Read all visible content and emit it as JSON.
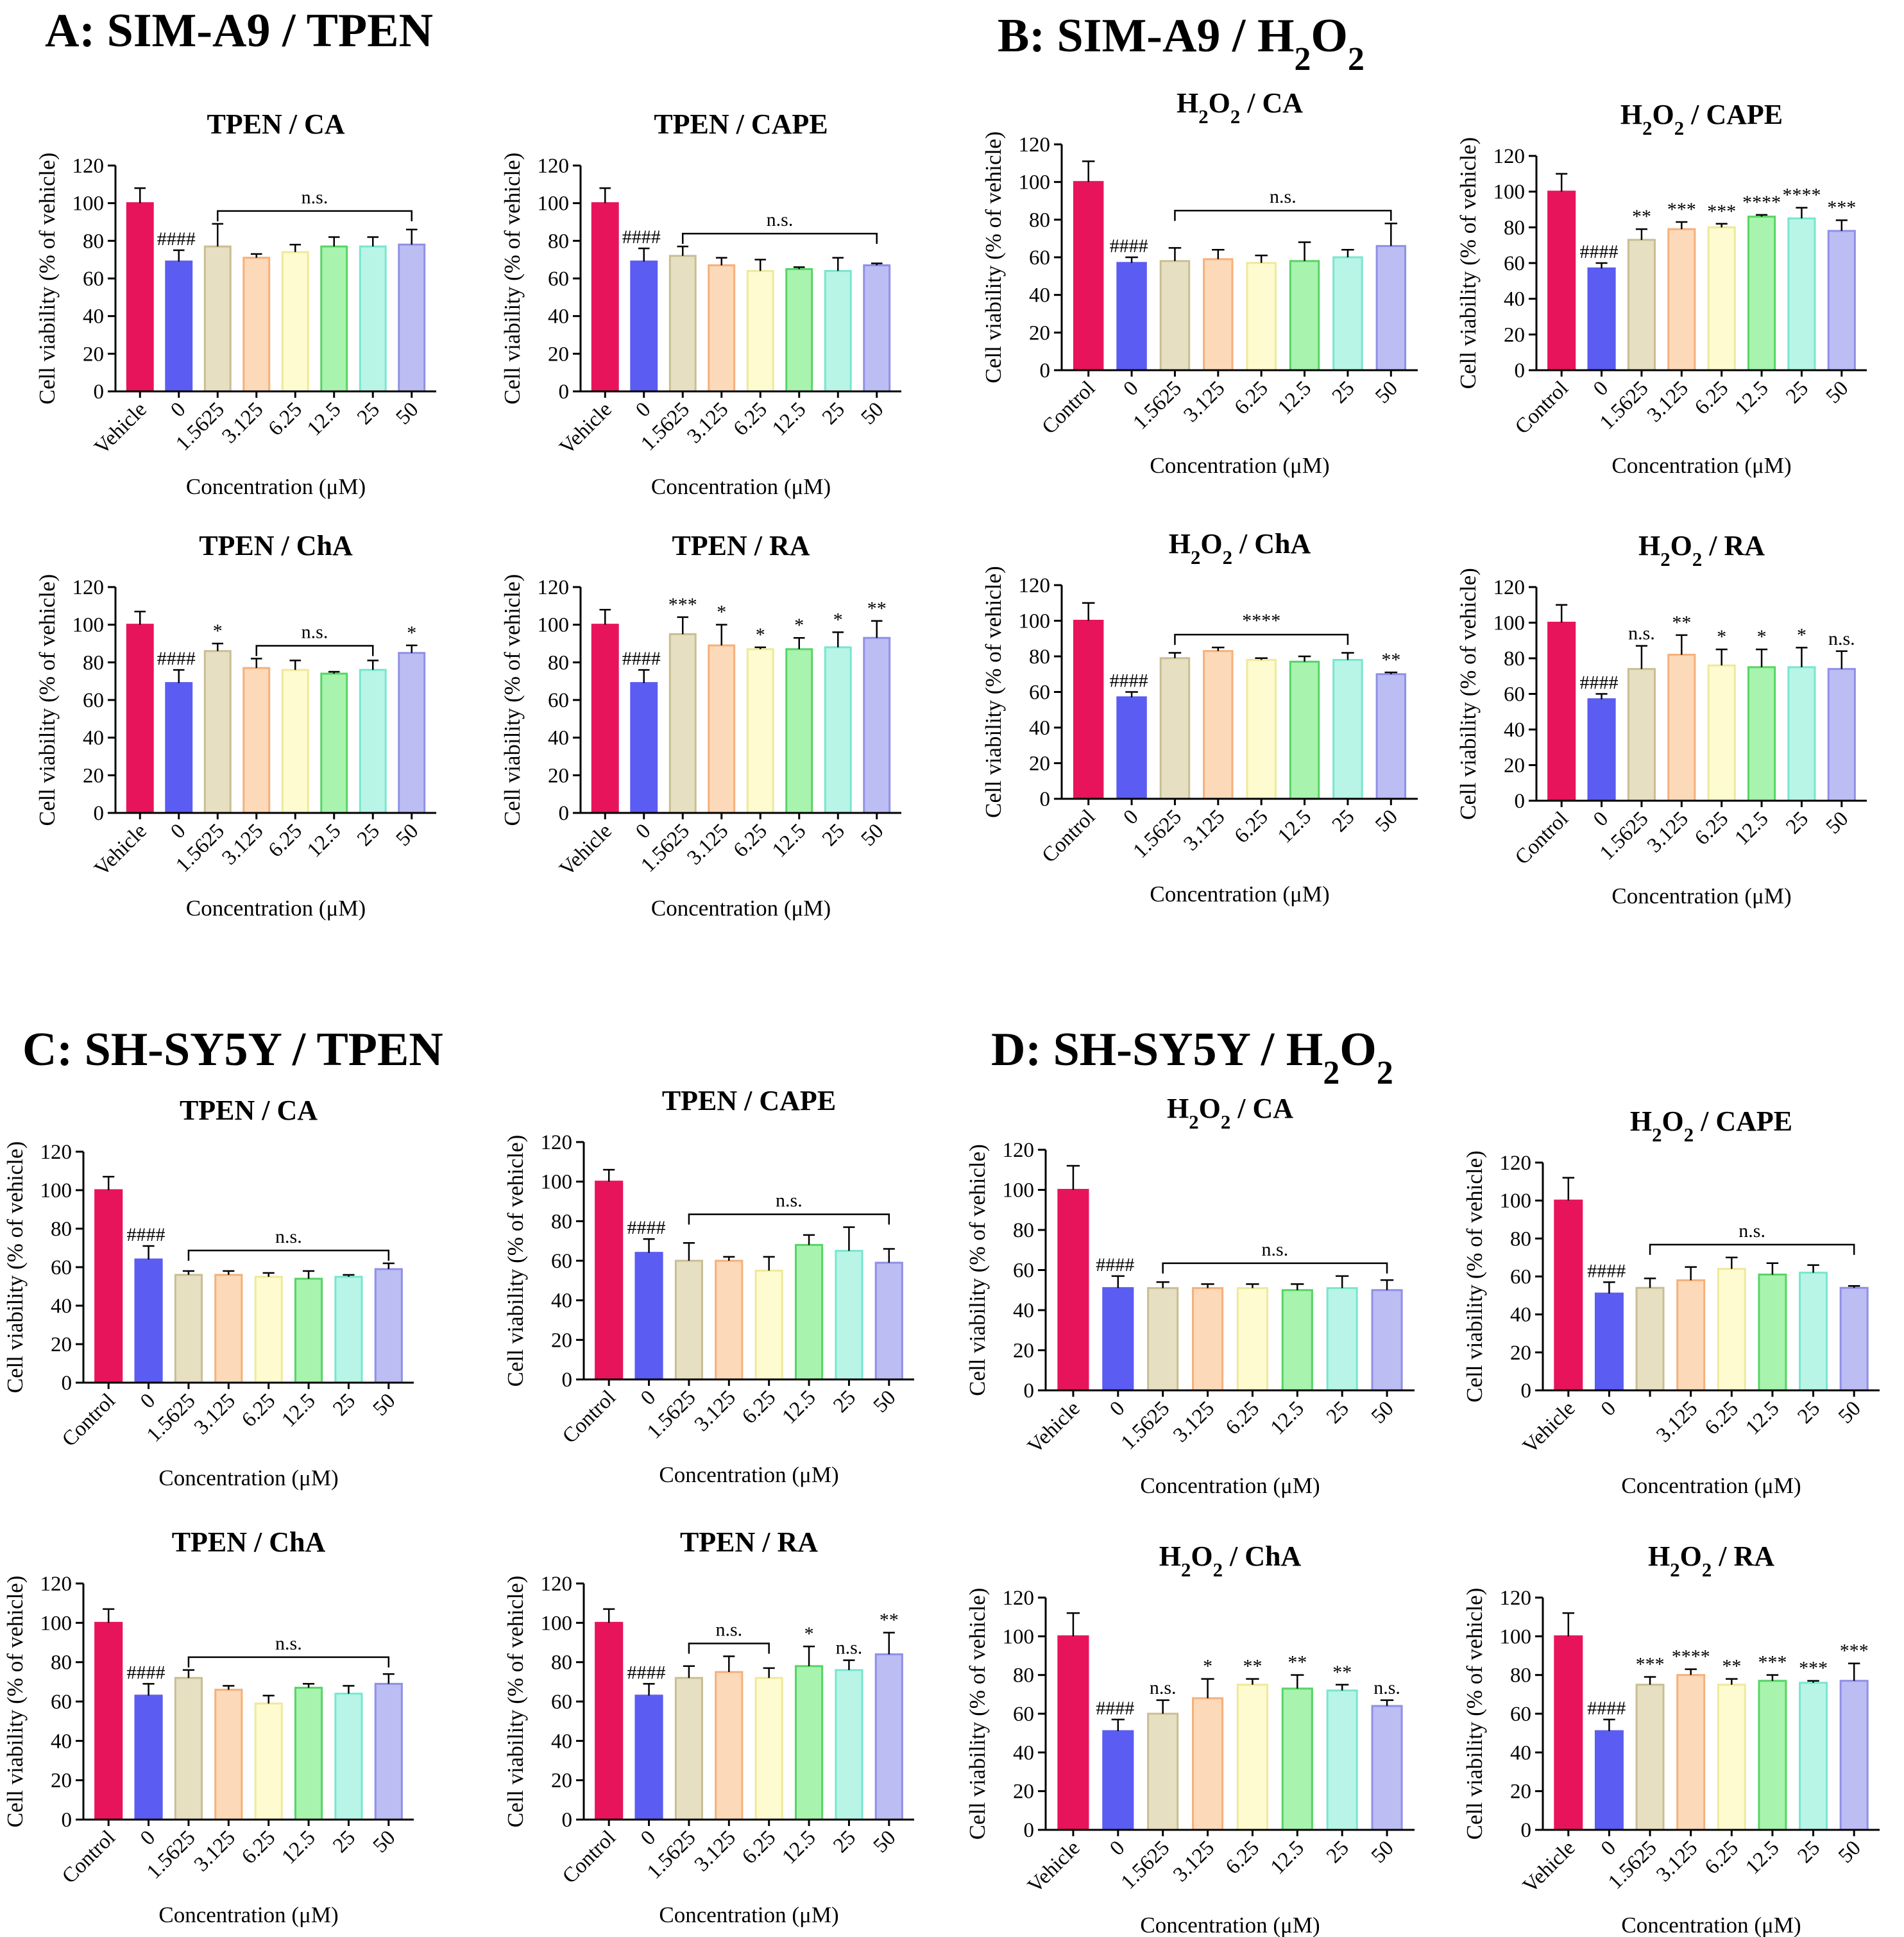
{
  "colors": {
    "fills": [
      "#e8145b",
      "#5b5cf2",
      "#e6dfc2",
      "#fcd9b8",
      "#fdfbcf",
      "#a8f3ae",
      "#b8f5e6",
      "#bcbdf3",
      "#f8c7f6"
    ],
    "strokes": [
      "#e8145b",
      "#5b5cf2",
      "#c9be93",
      "#f5b07a",
      "#efe99a",
      "#55d565",
      "#78e6cf",
      "#8f90e6",
      "#ef8be8"
    ]
  },
  "sections": [
    {
      "label": "A: SIM-A9 / TPEN"
    },
    {
      "label": "B: SIM-A9 / H2O2"
    },
    {
      "label": "C: SH-SY5Y / TPEN"
    },
    {
      "label": "D: SH-SY5Y / H2O2"
    }
  ],
  "chart_data": [
    {
      "type": "bar",
      "panel": "A1",
      "title": "TPEN /  CA",
      "xlabel": "Concentration (μM)",
      "ylabel": "Cell viability (% of vehicle)",
      "ylim": [
        0,
        120
      ],
      "yticks": [
        0,
        20,
        40,
        60,
        80,
        100,
        120
      ],
      "categories": [
        "Vehicle",
        "0",
        "1.5625",
        "3.125",
        "6.25",
        "12.5",
        "25",
        "50"
      ],
      "values": [
        100,
        69,
        77,
        71,
        74,
        77,
        77,
        78
      ],
      "errors": [
        8,
        6,
        12,
        2,
        4,
        5,
        5,
        8
      ],
      "labels": [
        "",
        "####",
        "",
        "",
        "",
        "",
        "",
        ""
      ],
      "bracket": {
        "from": 2,
        "to": 7,
        "label": "n.s."
      }
    },
    {
      "type": "bar",
      "panel": "A2",
      "title": "TPEN / CAPE",
      "xlabel": "Concentration (μM)",
      "ylabel": "Cell viability (% of vehicle)",
      "ylim": [
        0,
        120
      ],
      "yticks": [
        0,
        20,
        40,
        60,
        80,
        100,
        120
      ],
      "categories": [
        "Vehicle",
        "0",
        "1.5625",
        "3.125",
        "6.25",
        "12.5",
        "25",
        "50"
      ],
      "values": [
        100,
        69,
        72,
        67,
        64,
        65,
        64,
        67
      ],
      "errors": [
        8,
        7,
        5,
        4,
        6,
        1,
        7,
        1
      ],
      "labels": [
        "",
        "####",
        "",
        "",
        "",
        "",
        "",
        ""
      ],
      "bracket": {
        "from": 2,
        "to": 7,
        "label": "n.s."
      }
    },
    {
      "type": "bar",
      "panel": "A3",
      "title": "TPEN / ChA",
      "xlabel": "Concentration (μM)",
      "ylabel": "Cell viability (% of vehicle)",
      "ylim": [
        0,
        120
      ],
      "yticks": [
        0,
        20,
        40,
        60,
        80,
        100,
        120
      ],
      "categories": [
        "Vehicle",
        "0",
        "1.5625",
        "3.125",
        "6.25",
        "12.5",
        "25",
        "50"
      ],
      "values": [
        100,
        69,
        86,
        77,
        76,
        74,
        76,
        85
      ],
      "errors": [
        7,
        7,
        4,
        5,
        5,
        1,
        5,
        4
      ],
      "labels": [
        "",
        "####",
        "*",
        "",
        "",
        "",
        "",
        "*"
      ],
      "bracket": {
        "from": 3,
        "to": 6,
        "label": "n.s."
      }
    },
    {
      "type": "bar",
      "panel": "A4",
      "title": "TPEN / RA",
      "xlabel": "Concentration (μM)",
      "ylabel": "Cell viability (% of vehicle)",
      "ylim": [
        0,
        120
      ],
      "yticks": [
        0,
        20,
        40,
        60,
        80,
        100,
        120
      ],
      "categories": [
        "Vehicle",
        "0",
        "1.5625",
        "3.125",
        "6.25",
        "12.5",
        "25",
        "50"
      ],
      "values": [
        100,
        69,
        95,
        89,
        87,
        87,
        88,
        93
      ],
      "errors": [
        8,
        7,
        9,
        11,
        1,
        6,
        8,
        9
      ],
      "labels": [
        "",
        "####",
        "***",
        "*",
        "*",
        "*",
        "*",
        "**"
      ],
      "bracket": null
    },
    {
      "type": "bar",
      "panel": "B1",
      "title": "H2O2 / CA",
      "xlabel": "Concentration (μM)",
      "ylabel": "Cell viability (% of vehicle)",
      "ylim": [
        0,
        120
      ],
      "yticks": [
        0,
        20,
        40,
        60,
        80,
        100,
        120
      ],
      "categories": [
        "Control",
        "0",
        "1.5625",
        "3.125",
        "6.25",
        "12.5",
        "25",
        "50"
      ],
      "values": [
        100,
        57,
        58,
        59,
        57,
        58,
        60,
        66
      ],
      "errors": [
        11,
        3,
        7,
        5,
        4,
        10,
        4,
        12
      ],
      "labels": [
        "",
        "####",
        "",
        "",
        "",
        "",
        "",
        ""
      ],
      "bracket": {
        "from": 2,
        "to": 7,
        "label": "n.s."
      }
    },
    {
      "type": "bar",
      "panel": "B2",
      "title": "H2O2 / CAPE",
      "xlabel": "Concentration (μM)",
      "ylabel": "Cell viability (% of vehicle)",
      "ylim": [
        0,
        120
      ],
      "yticks": [
        0,
        20,
        40,
        60,
        80,
        100,
        120
      ],
      "categories": [
        "Control",
        "0",
        "1.5625",
        "3.125",
        "6.25",
        "12.5",
        "25",
        "50"
      ],
      "values": [
        100,
        57,
        73,
        79,
        80,
        86,
        85,
        78
      ],
      "errors": [
        10,
        3,
        6,
        4,
        2,
        1,
        6,
        6
      ],
      "labels": [
        "",
        "####",
        "**",
        "***",
        "***",
        "****",
        "****",
        "***"
      ],
      "bracket": null
    },
    {
      "type": "bar",
      "panel": "B3",
      "title": "H2O2 / ChA",
      "xlabel": "Concentration (μM)",
      "ylabel": "Cell viability (% of vehicle)",
      "ylim": [
        0,
        120
      ],
      "yticks": [
        0,
        20,
        40,
        60,
        80,
        100,
        120
      ],
      "categories": [
        "Control",
        "0",
        "1.5625",
        "3.125",
        "6.25",
        "12.5",
        "25",
        "50"
      ],
      "values": [
        100,
        57,
        79,
        83,
        78,
        77,
        78,
        70
      ],
      "errors": [
        10,
        3,
        3,
        2,
        1,
        3,
        4,
        1
      ],
      "labels": [
        "",
        "####",
        "",
        "",
        "",
        "",
        "",
        "**"
      ],
      "bracket": {
        "from": 2,
        "to": 6,
        "label": "****"
      }
    },
    {
      "type": "bar",
      "panel": "B4",
      "title": "H2O2 / RA",
      "xlabel": "Concentration (μM)",
      "ylabel": "Cell viability (% of vehicle)",
      "ylim": [
        0,
        120
      ],
      "yticks": [
        0,
        20,
        40,
        60,
        80,
        100,
        120
      ],
      "categories": [
        "Control",
        "0",
        "1.5625",
        "3.125",
        "6.25",
        "12.5",
        "25",
        "50"
      ],
      "values": [
        100,
        57,
        74,
        82,
        76,
        75,
        75,
        74
      ],
      "errors": [
        10,
        3,
        13,
        11,
        9,
        10,
        11,
        10
      ],
      "labels": [
        "",
        "####",
        "n.s.",
        "**",
        "*",
        "*",
        "*",
        "n.s."
      ],
      "bracket": null
    },
    {
      "type": "bar",
      "panel": "C1",
      "title": "TPEN /  CA",
      "xlabel": "Concentration (μM)",
      "ylabel": "Cell viability (% of vehicle)",
      "ylim": [
        0,
        120
      ],
      "yticks": [
        0,
        20,
        40,
        60,
        80,
        100,
        120
      ],
      "categories": [
        "Control",
        "0",
        "1.5625",
        "3.125",
        "6.25",
        "12.5",
        "25",
        "50"
      ],
      "values": [
        100,
        64,
        56,
        56,
        55,
        54,
        55,
        59
      ],
      "errors": [
        7,
        7,
        2,
        2,
        2,
        4,
        1,
        3
      ],
      "labels": [
        "",
        "####",
        "",
        "",
        "",
        "",
        "",
        ""
      ],
      "bracket": {
        "from": 2,
        "to": 7,
        "label": "n.s."
      }
    },
    {
      "type": "bar",
      "panel": "C2",
      "title": "TPEN / CAPE",
      "xlabel": "Concentration (μM)",
      "ylabel": "Cell viability (% of vehicle)",
      "ylim": [
        0,
        120
      ],
      "yticks": [
        0,
        20,
        40,
        60,
        80,
        100,
        120
      ],
      "categories": [
        "Control",
        "0",
        "1.5625",
        "3.125",
        "6.25",
        "12.5",
        "25",
        "50"
      ],
      "values": [
        100,
        64,
        60,
        60,
        55,
        68,
        65,
        59
      ],
      "errors": [
        6,
        7,
        9,
        2,
        7,
        5,
        12,
        7
      ],
      "labels": [
        "",
        "####",
        "",
        "",
        "",
        "",
        "",
        ""
      ],
      "bracket": {
        "from": 2,
        "to": 7,
        "label": "n.s."
      }
    },
    {
      "type": "bar",
      "panel": "C3",
      "title": "TPEN / ChA",
      "xlabel": "Concentration (μM)",
      "ylabel": "Cell viability (% of vehicle)",
      "ylim": [
        0,
        120
      ],
      "yticks": [
        0,
        20,
        40,
        60,
        80,
        100,
        120
      ],
      "categories": [
        "Control",
        "0",
        "1.5625",
        "3.125",
        "6.25",
        "12.5",
        "25",
        "50"
      ],
      "values": [
        100,
        63,
        72,
        66,
        59,
        67,
        64,
        69
      ],
      "errors": [
        7,
        6,
        4,
        2,
        4,
        2,
        4,
        5
      ],
      "labels": [
        "",
        "####",
        "",
        "",
        "",
        "",
        "",
        ""
      ],
      "bracket": {
        "from": 2,
        "to": 7,
        "label": "n.s."
      }
    },
    {
      "type": "bar",
      "panel": "C4",
      "title": "TPEN / RA",
      "xlabel": "Concentration (μM)",
      "ylabel": "Cell viability (% of vehicle)",
      "ylim": [
        0,
        120
      ],
      "yticks": [
        0,
        20,
        40,
        60,
        80,
        100,
        120
      ],
      "categories": [
        "Control",
        "0",
        "1.5625",
        "3.125",
        "6.25",
        "12.5",
        "25",
        "50"
      ],
      "values": [
        100,
        63,
        72,
        75,
        72,
        78,
        76,
        84
      ],
      "errors": [
        7,
        6,
        6,
        8,
        5,
        10,
        5,
        11
      ],
      "labels": [
        "",
        "####",
        "",
        "",
        "",
        "*",
        "n.s.",
        "**"
      ],
      "bracket": {
        "from": 2,
        "to": 4,
        "label": "n.s."
      }
    },
    {
      "type": "bar",
      "panel": "D1",
      "title": "H2O2 / CA",
      "xlabel": "Concentration (μM)",
      "ylabel": "Cell viability (% of vehicle)",
      "ylim": [
        0,
        120
      ],
      "yticks": [
        0,
        20,
        40,
        60,
        80,
        100,
        120
      ],
      "categories": [
        "Vehicle",
        "0",
        "1.5625",
        "3.125",
        "6.25",
        "12.5",
        "25",
        "50"
      ],
      "values": [
        100,
        51,
        51,
        51,
        51,
        50,
        51,
        50
      ],
      "errors": [
        12,
        6,
        3,
        2,
        2,
        3,
        6,
        5
      ],
      "labels": [
        "",
        "####",
        "",
        "",
        "",
        "",
        "",
        ""
      ],
      "bracket": {
        "from": 2,
        "to": 7,
        "label": "n.s."
      }
    },
    {
      "type": "bar",
      "panel": "D2",
      "title": "H2O2 / CAPE",
      "xlabel": "Concentration (μM)",
      "ylabel": "Cell viability (% of vehicle)",
      "ylim": [
        0,
        120
      ],
      "yticks": [
        0,
        20,
        40,
        60,
        80,
        100,
        120
      ],
      "categories": [
        "Vehicle",
        "0",
        "",
        "3.125",
        "6.25",
        "12.5",
        "25",
        "50"
      ],
      "values": [
        100,
        51,
        54,
        58,
        64,
        61,
        62,
        54
      ],
      "errors": [
        12,
        6,
        5,
        7,
        6,
        6,
        4,
        1
      ],
      "labels": [
        "",
        "####",
        "",
        "",
        "",
        "",
        "",
        ""
      ],
      "bracket": {
        "from": 2,
        "to": 7,
        "label": "n.s."
      }
    },
    {
      "type": "bar",
      "panel": "D3",
      "title": "H2O2 / ChA",
      "xlabel": "Concentration (μM)",
      "ylabel": "Cell viability (% of vehicle)",
      "ylim": [
        0,
        120
      ],
      "yticks": [
        0,
        20,
        40,
        60,
        80,
        100,
        120
      ],
      "categories": [
        "Vehicle",
        "0",
        "1.5625",
        "3.125",
        "6.25",
        "12.5",
        "25",
        "50"
      ],
      "values": [
        100,
        51,
        60,
        68,
        75,
        73,
        72,
        64
      ],
      "errors": [
        12,
        6,
        7,
        10,
        3,
        7,
        3,
        3
      ],
      "labels": [
        "",
        "####",
        "n.s.",
        "*",
        "**",
        "**",
        "**",
        "n.s."
      ],
      "bracket": null
    },
    {
      "type": "bar",
      "panel": "D4",
      "title": "H2O2 / RA",
      "xlabel": "Concentration (μM)",
      "ylabel": "Cell viability (% of vehicle)",
      "ylim": [
        0,
        120
      ],
      "yticks": [
        0,
        20,
        40,
        60,
        80,
        100,
        120
      ],
      "categories": [
        "Vehicle",
        "0",
        "1.5625",
        "3.125",
        "6.25",
        "12.5",
        "25",
        "50"
      ],
      "values": [
        100,
        51,
        75,
        80,
        75,
        77,
        76,
        77
      ],
      "errors": [
        12,
        6,
        4,
        3,
        3,
        3,
        1,
        9
      ],
      "labels": [
        "",
        "####",
        "***",
        "****",
        "**",
        "***",
        "***",
        "***"
      ],
      "bracket": null
    }
  ]
}
